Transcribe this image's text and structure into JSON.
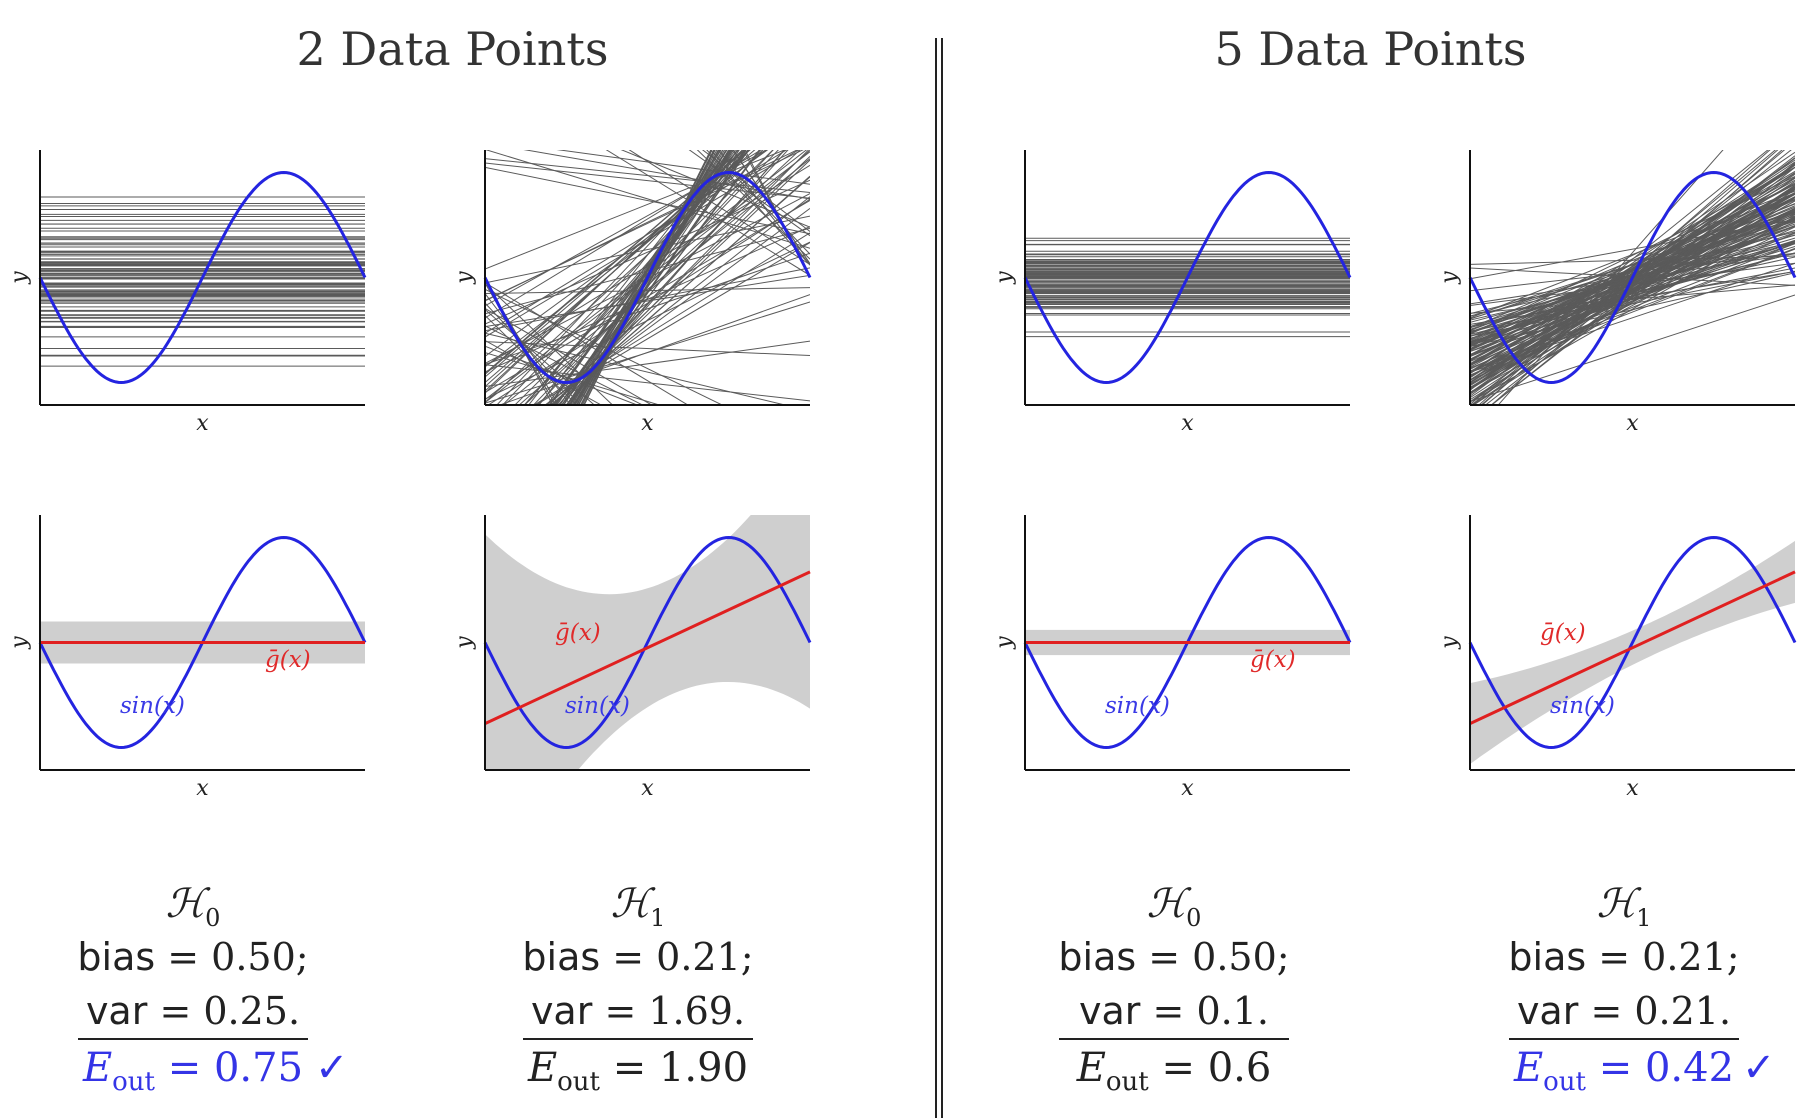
{
  "titles": {
    "left": "2 Data Points",
    "right": "5 Data Points"
  },
  "axis": {
    "xlabel": "x",
    "ylabel": "y"
  },
  "colors": {
    "target": "#2424e0",
    "gbar": "#e02020",
    "samples": "#5a5a5a",
    "band": "#cfcfcf",
    "good": "#3434e6"
  },
  "annotations": {
    "gbar_label": "ḡ(x)",
    "target_label": "sin(x)"
  },
  "panels": [
    {
      "group": "2 Data Points",
      "hypothesis": "H0",
      "n": 2,
      "bias_label": "bias",
      "bias_value": "= 0.50;",
      "var_label": "var",
      "var_value": "= 0.25.",
      "eout_value": "= 0.75",
      "best": true
    },
    {
      "group": "2 Data Points",
      "hypothesis": "H1",
      "n": 2,
      "bias_label": "bias",
      "bias_value": "= 0.21;",
      "var_label": "var",
      "var_value": "= 1.69.",
      "eout_value": "= 1.90",
      "best": false
    },
    {
      "group": "5 Data Points",
      "hypothesis": "H0",
      "n": 5,
      "bias_label": "bias",
      "bias_value": "= 0.50;",
      "var_label": "var",
      "var_value": "= 0.1.",
      "eout_value": "= 0.6",
      "best": false
    },
    {
      "group": "5 Data Points",
      "hypothesis": "H1",
      "n": 5,
      "bias_label": "bias",
      "bias_value": "= 0.21;",
      "var_label": "var",
      "var_value": "= 0.21.",
      "eout_value": "= 0.42",
      "best": true
    }
  ],
  "hyp_symbol": "ℋ",
  "eout_symbol": "E",
  "eout_sub": "out",
  "check": "✓"
}
